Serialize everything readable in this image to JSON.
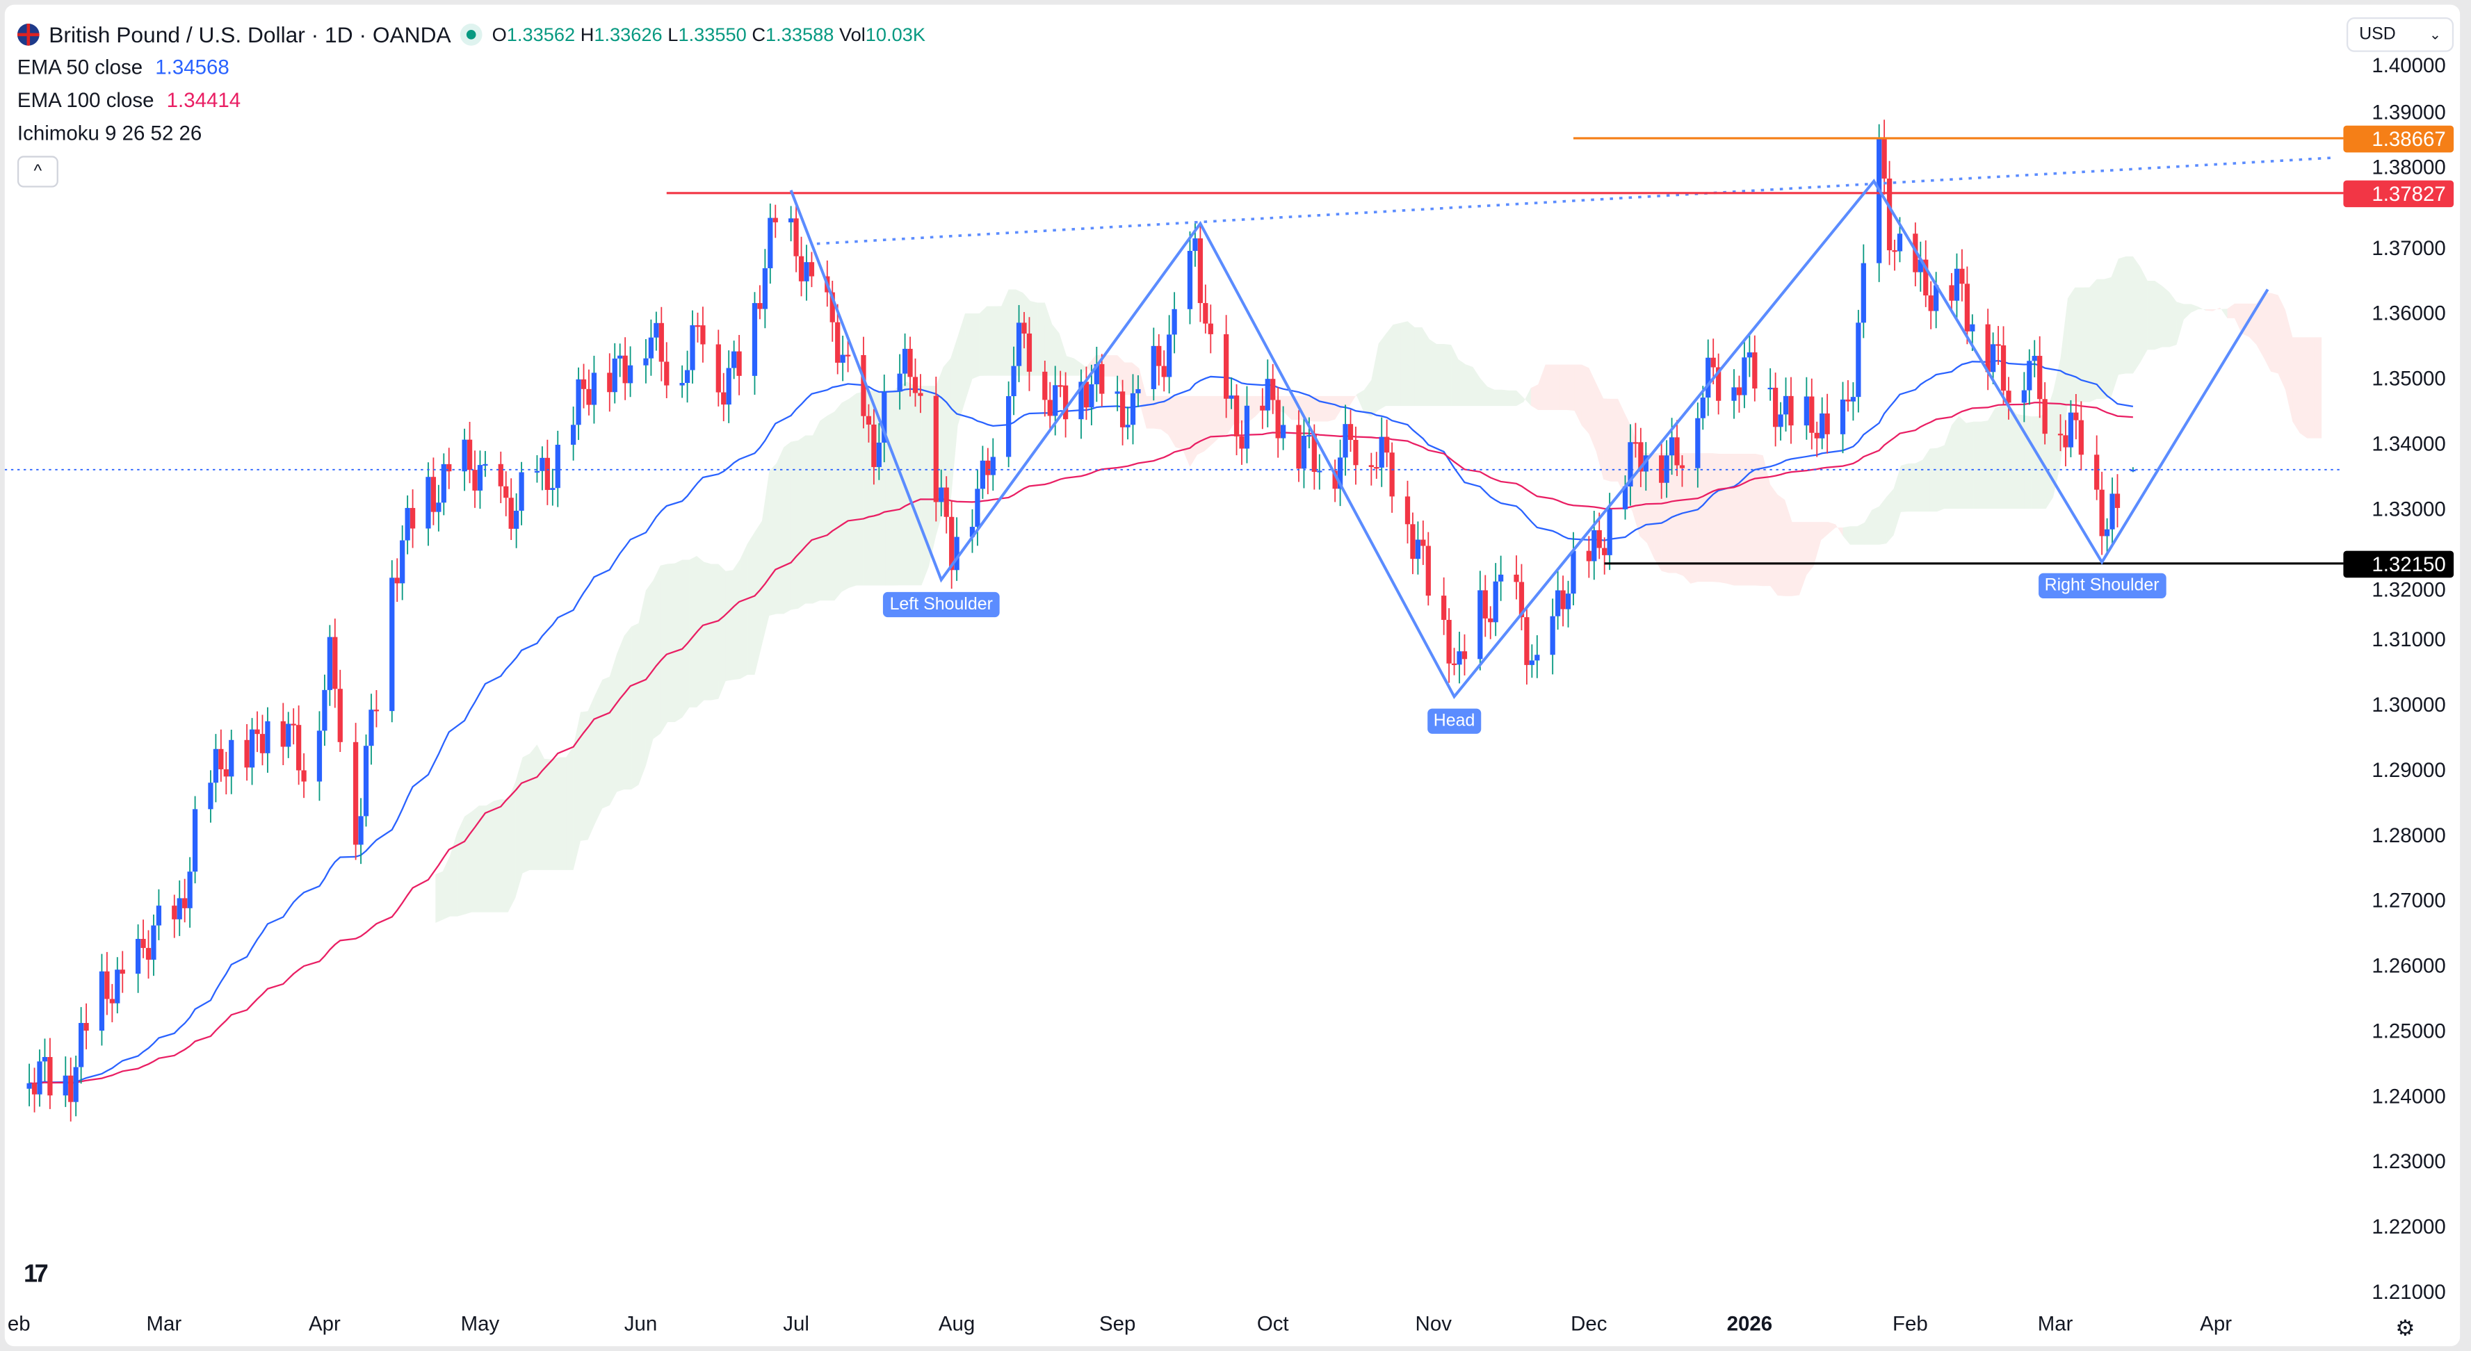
{
  "header": {
    "symbol": "British Pound / U.S. Dollar · 1D · OANDA",
    "o_label": "O",
    "o": "1.33562",
    "h_label": "H",
    "h": "1.33626",
    "l_label": "L",
    "l": "1.33550",
    "c_label": "C",
    "c": "1.33588",
    "vol_label": "Vol",
    "vol": "10.03K"
  },
  "indicators": [
    {
      "label": "EMA 50 close",
      "value": "1.34568",
      "color": "#2962ff"
    },
    {
      "label": "EMA 100 close",
      "value": "1.34414",
      "color": "#e91e63"
    },
    {
      "label": "Ichimoku 9 26 52 26"
    }
  ],
  "collapse_icon": "chevron-up-icon",
  "currency_select": {
    "value": "USD"
  },
  "colors": {
    "up": "#2962ff",
    "down": "#f23645",
    "wick_up": "#089981",
    "ema50": "#2962ff",
    "ema100": "#e91e63",
    "pattern": "#5b8cff",
    "cloud_up": "#43a047",
    "cloud_down": "#f44336"
  },
  "chart_data": {
    "type": "candlestick",
    "y_ticks": [
      "1.40000",
      "1.39000",
      "1.38000",
      "1.37000",
      "1.36000",
      "1.35000",
      "1.34000",
      "1.33000",
      "1.32000",
      "1.31000",
      "1.30000",
      "1.29000",
      "1.28000",
      "1.27000",
      "1.26000",
      "1.25000",
      "1.24000",
      "1.23000",
      "1.22000",
      "1.21000"
    ],
    "ylim": [
      1.21,
      1.4
    ],
    "x_ticks": [
      {
        "label": "eb",
        "date": "2025-02-01"
      },
      {
        "label": "Mar",
        "date": "2025-03-01"
      },
      {
        "label": "Apr",
        "date": "2025-04-01"
      },
      {
        "label": "May",
        "date": "2025-05-01"
      },
      {
        "label": "Jun",
        "date": "2025-06-01"
      },
      {
        "label": "Jul",
        "date": "2025-07-01"
      },
      {
        "label": "Aug",
        "date": "2025-08-01"
      },
      {
        "label": "Sep",
        "date": "2025-09-01"
      },
      {
        "label": "Oct",
        "date": "2025-10-01"
      },
      {
        "label": "Nov",
        "date": "2025-11-01"
      },
      {
        "label": "Dec",
        "date": "2025-12-01"
      },
      {
        "label": "2026",
        "date": "2026-01-01",
        "bold": true
      },
      {
        "label": "Feb",
        "date": "2026-02-01"
      },
      {
        "label": "Mar",
        "date": "2026-03-01"
      },
      {
        "label": "Apr",
        "date": "2026-04-01"
      }
    ],
    "closes": [
      [
        "2025-02-03",
        1.241
      ],
      [
        "2025-02-11",
        1.244
      ],
      [
        "2025-02-18",
        1.256
      ],
      [
        "2025-02-26",
        1.263
      ],
      [
        "2025-03-03",
        1.265
      ],
      [
        "2025-03-07",
        1.282
      ],
      [
        "2025-03-14",
        1.292
      ],
      [
        "2025-03-21",
        1.297
      ],
      [
        "2025-03-28",
        1.292
      ],
      [
        "2025-04-02",
        1.306
      ],
      [
        "2025-04-07",
        1.28
      ],
      [
        "2025-04-10",
        1.299
      ],
      [
        "2025-04-14",
        1.318
      ],
      [
        "2025-04-21",
        1.334
      ],
      [
        "2025-04-27",
        1.335
      ],
      [
        "2025-05-02",
        1.335
      ],
      [
        "2025-05-08",
        1.329
      ],
      [
        "2025-05-14",
        1.336
      ],
      [
        "2025-05-20",
        1.345
      ],
      [
        "2025-05-26",
        1.352
      ],
      [
        "2025-06-01",
        1.355
      ],
      [
        "2025-06-07",
        1.352
      ],
      [
        "2025-06-13",
        1.357
      ],
      [
        "2025-06-16",
        1.347
      ],
      [
        "2025-06-23",
        1.36
      ],
      [
        "2025-06-27",
        1.372
      ],
      [
        "2025-07-01",
        1.372
      ],
      [
        "2025-07-05",
        1.362
      ],
      [
        "2025-07-11",
        1.35
      ],
      [
        "2025-07-16",
        1.34
      ],
      [
        "2025-07-21",
        1.349
      ],
      [
        "2025-07-24",
        1.352
      ],
      [
        "2025-07-27",
        1.338
      ],
      [
        "2025-07-31",
        1.322
      ],
      [
        "2025-08-05",
        1.333
      ],
      [
        "2025-08-09",
        1.345
      ],
      [
        "2025-08-14",
        1.355
      ],
      [
        "2025-08-18",
        1.35
      ],
      [
        "2025-08-23",
        1.345
      ],
      [
        "2025-08-29",
        1.35
      ],
      [
        "2025-09-04",
        1.343
      ],
      [
        "2025-09-10",
        1.355
      ],
      [
        "2025-09-16",
        1.368
      ],
      [
        "2025-09-19",
        1.352
      ],
      [
        "2025-09-25",
        1.343
      ],
      [
        "2025-10-01",
        1.345
      ],
      [
        "2025-10-07",
        1.34
      ],
      [
        "2025-10-12",
        1.333
      ],
      [
        "2025-10-16",
        1.343
      ],
      [
        "2025-10-23",
        1.335
      ],
      [
        "2025-10-29",
        1.326
      ],
      [
        "2025-11-03",
        1.309
      ],
      [
        "2025-11-06",
        1.304
      ],
      [
        "2025-11-10",
        1.316
      ],
      [
        "2025-11-16",
        1.316
      ],
      [
        "2025-11-21",
        1.306
      ],
      [
        "2025-11-25",
        1.314
      ],
      [
        "2025-12-01",
        1.323
      ],
      [
        "2025-12-07",
        1.333
      ],
      [
        "2025-12-13",
        1.34
      ],
      [
        "2025-12-19",
        1.338
      ],
      [
        "2025-12-25",
        1.352
      ],
      [
        "2025-12-31",
        1.35
      ],
      [
        "2026-01-06",
        1.347
      ],
      [
        "2026-01-12",
        1.343
      ],
      [
        "2026-01-17",
        1.338
      ],
      [
        "2026-01-21",
        1.352
      ],
      [
        "2026-01-26",
        1.382
      ],
      [
        "2026-01-28",
        1.372
      ],
      [
        "2026-02-02",
        1.367
      ],
      [
        "2026-02-06",
        1.36
      ],
      [
        "2026-02-11",
        1.365
      ],
      [
        "2026-02-15",
        1.355
      ],
      [
        "2026-02-20",
        1.347
      ],
      [
        "2026-02-24",
        1.355
      ],
      [
        "2026-02-27",
        1.345
      ],
      [
        "2026-03-03",
        1.34
      ],
      [
        "2026-03-07",
        1.343
      ],
      [
        "2026-03-11",
        1.326
      ],
      [
        "2026-03-16",
        1.33588
      ]
    ],
    "last_price": 1.33588,
    "levels": [
      {
        "value": 1.38667,
        "label": "1.38667",
        "from": "2025-11-28",
        "color": "#f57f17"
      },
      {
        "value": 1.37827,
        "label": "1.37827",
        "from": "2025-06-06",
        "color": "#f23645"
      },
      {
        "value": 1.3215,
        "label": "1.32150",
        "from": "2025-12-04",
        "color": "#000000"
      }
    ],
    "trendline": {
      "from": [
        "2025-07-05",
        1.3705
      ],
      "to": [
        "2026-04-24",
        1.3837
      ]
    },
    "pattern": [
      [
        "2025-06-30",
        1.3787
      ],
      [
        "2025-07-29",
        1.319
      ],
      [
        "2025-09-17",
        1.3736
      ],
      [
        "2025-11-05",
        1.3011
      ],
      [
        "2026-01-25",
        1.3801
      ],
      [
        "2026-03-10",
        1.3217
      ],
      [
        "2026-04-11",
        1.3635
      ]
    ],
    "annotations": [
      {
        "text": "Left Shoulder",
        "date": "2025-07-29",
        "price": 1.319
      },
      {
        "text": "Head",
        "date": "2025-11-05",
        "price": 1.3011
      },
      {
        "text": "Right Shoulder",
        "date": "2026-03-10",
        "price": 1.3217
      }
    ]
  }
}
